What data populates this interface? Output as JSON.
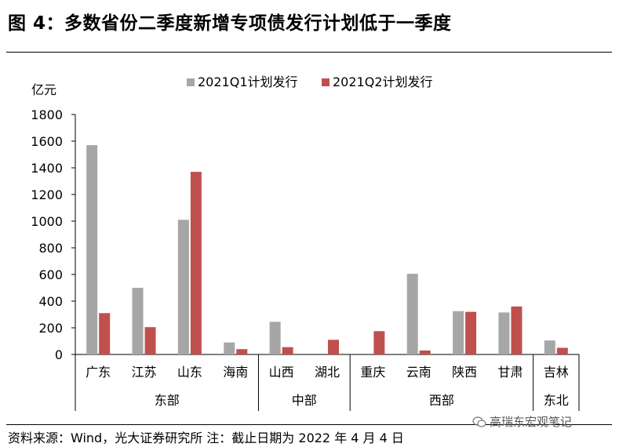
{
  "figure": {
    "title": "图 4：多数省份二季度新增专项债发行计划低于一季度",
    "source": "资料来源：Wind，光大证券研究所 注：截止日期为 2022 年 4 月 4 日",
    "watermark": "高瑞东宏观笔记"
  },
  "chart_data": {
    "type": "bar",
    "ylabel": "亿元",
    "ylim": [
      0,
      1800
    ],
    "yticks": [
      0,
      200,
      400,
      600,
      800,
      1000,
      1200,
      1400,
      1600,
      1800
    ],
    "categories": [
      "广东",
      "江苏",
      "山东",
      "海南",
      "山西",
      "湖北",
      "重庆",
      "云南",
      "陕西",
      "甘肃",
      "吉林"
    ],
    "groups": [
      {
        "label": "东部",
        "categories": [
          "广东",
          "江苏",
          "山东",
          "海南"
        ]
      },
      {
        "label": "中部",
        "categories": [
          "山西",
          "湖北"
        ]
      },
      {
        "label": "西部",
        "categories": [
          "重庆",
          "云南",
          "陕西",
          "甘肃"
        ]
      },
      {
        "label": "东北",
        "categories": [
          "吉林"
        ]
      }
    ],
    "series": [
      {
        "name": "2021Q1计划发行",
        "color": "#a6a6a6",
        "values": [
          1570,
          500,
          1010,
          90,
          245,
          0,
          0,
          605,
          325,
          315,
          105
        ]
      },
      {
        "name": "2021Q2计划发行",
        "color": "#c0504d",
        "values": [
          310,
          205,
          1370,
          40,
          55,
          110,
          175,
          30,
          320,
          360,
          50
        ]
      }
    ],
    "legend_position": "top",
    "grid": false
  }
}
